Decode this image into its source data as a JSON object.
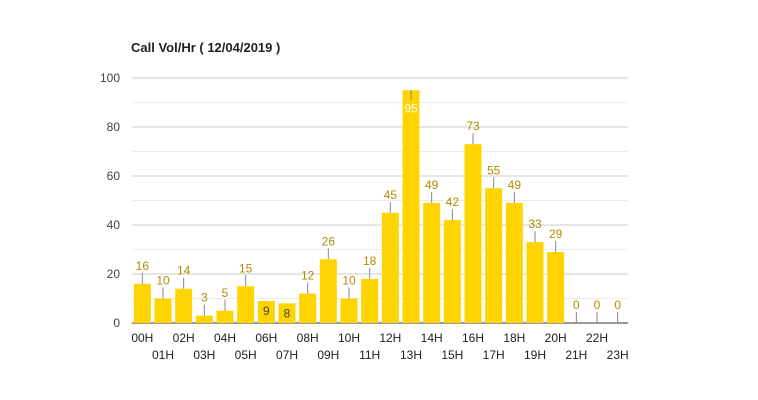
{
  "chart_data": {
    "type": "bar",
    "title": "Call Vol/Hr ( 12/04/2019 )",
    "xlabel": "",
    "ylabel": "",
    "ylim": [
      0,
      100
    ],
    "yticks": [
      0,
      20,
      40,
      60,
      80,
      100
    ],
    "grid": true,
    "bar_color": "#ffd400",
    "label_color": "#b08c00",
    "categories": [
      "00H",
      "01H",
      "02H",
      "03H",
      "04H",
      "05H",
      "06H",
      "07H",
      "08H",
      "09H",
      "10H",
      "11H",
      "12H",
      "13H",
      "14H",
      "15H",
      "16H",
      "17H",
      "18H",
      "19H",
      "20H",
      "21H",
      "22H",
      "23H"
    ],
    "values": [
      16,
      10,
      14,
      3,
      5,
      15,
      9,
      8,
      12,
      26,
      10,
      18,
      45,
      95,
      49,
      42,
      73,
      55,
      49,
      33,
      29,
      0,
      0,
      0
    ]
  }
}
